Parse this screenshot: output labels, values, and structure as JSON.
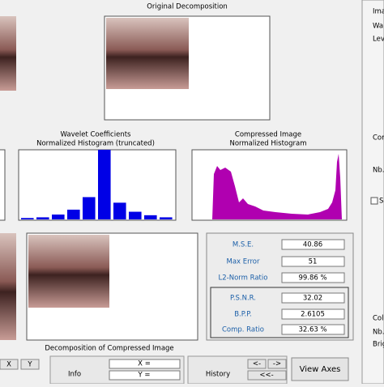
{
  "top": {
    "title": "Original Decomposition"
  },
  "side_panel": {
    "labels": [
      "Ima",
      "Wa",
      "Lev",
      "Com",
      "Nb.",
      "S",
      "Col",
      "Nb.",
      "Brig"
    ]
  },
  "wavelet_histogram": {
    "title": "Wavelet Coefficients",
    "subtitle": "Normalized Histogram (truncated)",
    "values": [
      2,
      3,
      7,
      14,
      32,
      100,
      24,
      11,
      6,
      3
    ]
  },
  "compressed_histogram": {
    "title": "Compressed Image",
    "subtitle": "Normalized Histogram"
  },
  "bottom": {
    "title": "Decomposition of Compressed Image"
  },
  "stats": {
    "rows": [
      [
        "M.S.E.",
        "40.86"
      ],
      [
        "Max Error",
        "51"
      ],
      [
        "L2-Norm Ratio",
        "99.86 %"
      ],
      [
        "P.S.N.R.",
        "32.02"
      ],
      [
        "B.P.P.",
        "2.6105"
      ],
      [
        "Comp. Ratio",
        "32.63 %"
      ]
    ]
  },
  "toolbar": {
    "x_button": "X",
    "y_button": "Y",
    "info": "Info",
    "x_eq": "X =",
    "y_eq": "Y =",
    "history": "History",
    "back": "<-",
    "forward": "->",
    "first": "<<-",
    "view_axes": "View Axes"
  }
}
